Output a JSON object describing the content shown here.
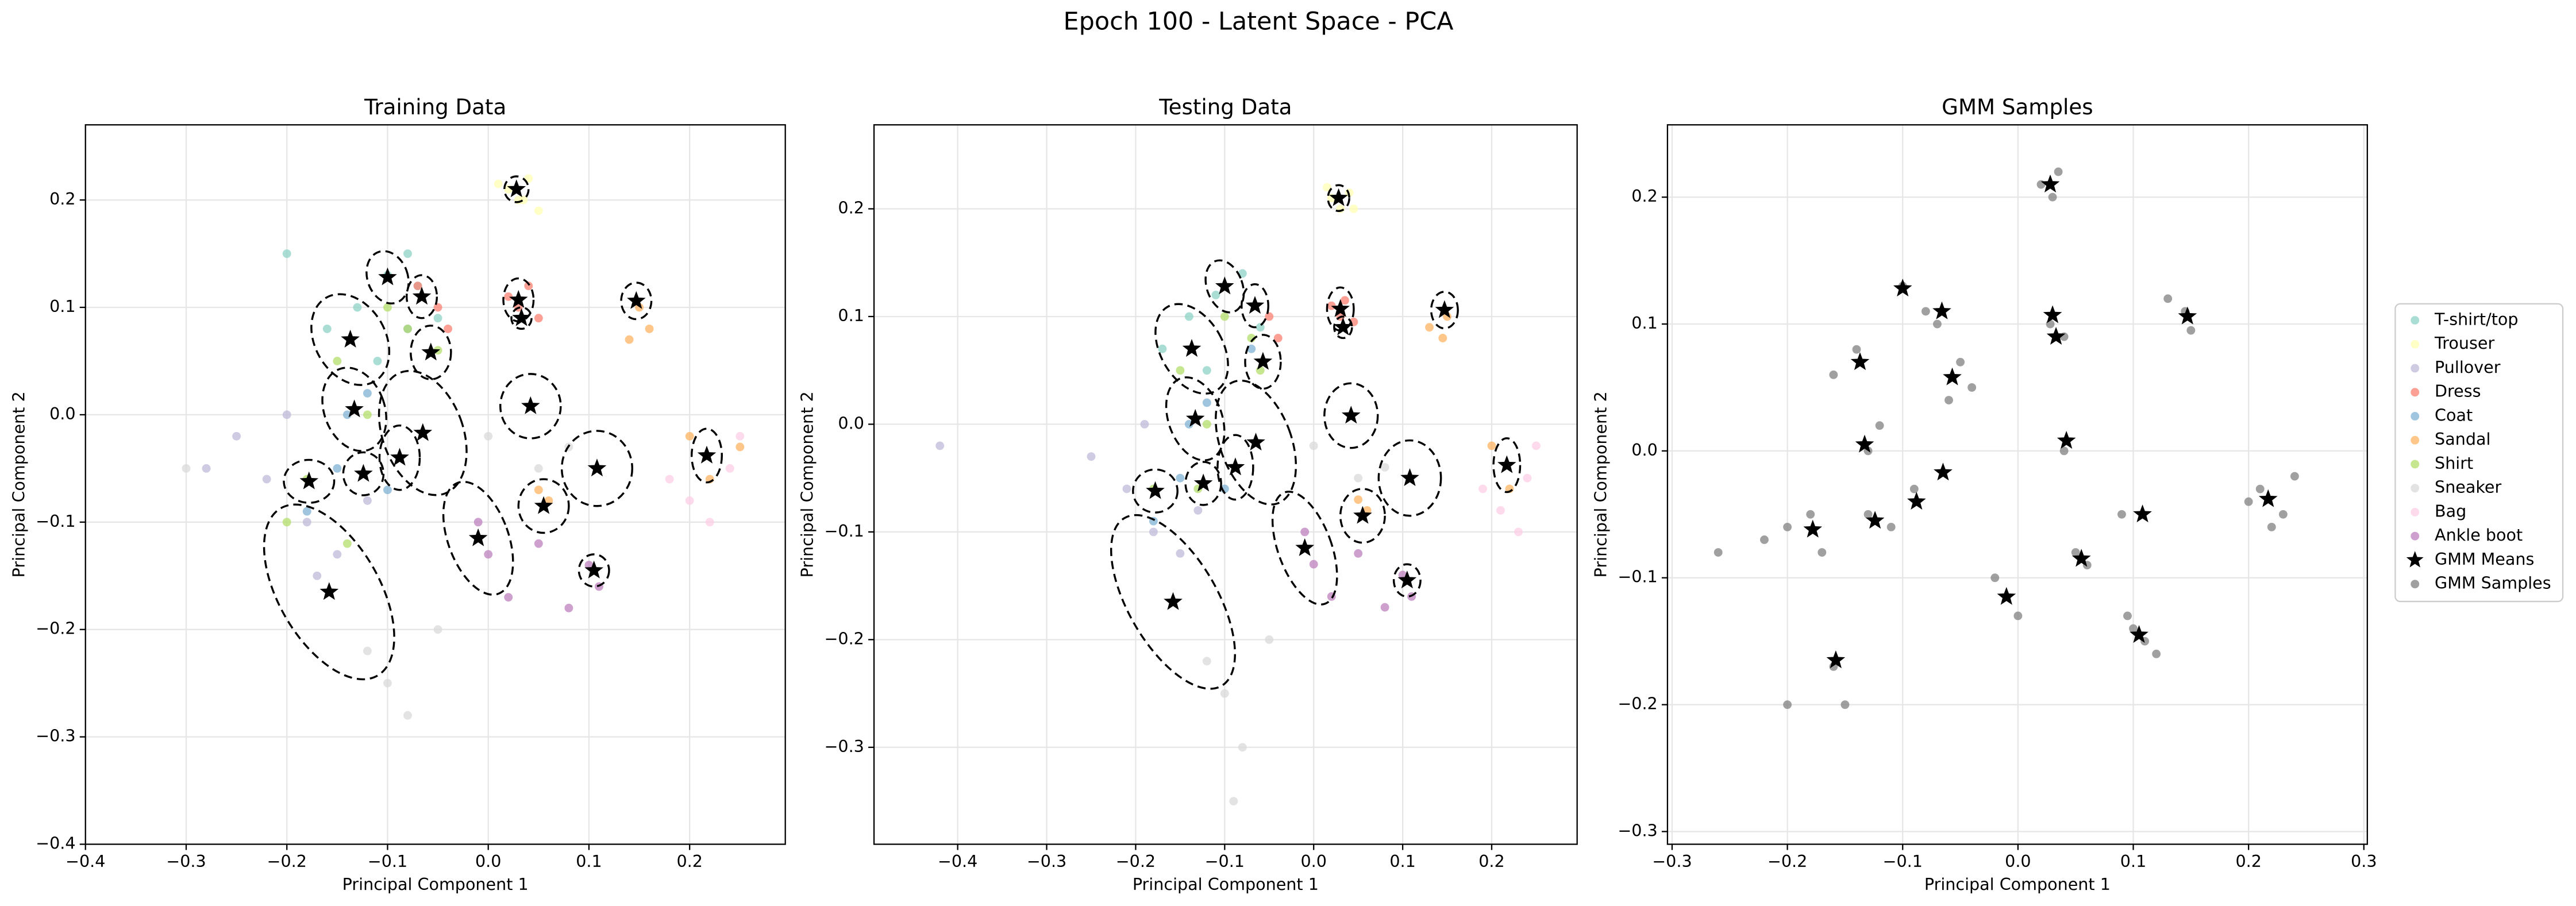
{
  "title": "Epoch 100 - Latent Space - PCA",
  "chart_data": [
    {
      "type": "scatter",
      "title": "Training Data",
      "x_label": "Principal Component 1",
      "y_label": "Principal Component 2",
      "grid": true,
      "xlim": [
        -0.4,
        0.295
      ],
      "ylim": [
        -0.4,
        0.27
      ],
      "xticks": [
        {
          "value": -0.4,
          "label": "−0.4"
        },
        {
          "value": -0.3,
          "label": "−0.3"
        },
        {
          "value": -0.2,
          "label": "−0.2"
        },
        {
          "value": -0.1,
          "label": "−0.1"
        },
        {
          "value": 0,
          "label": "0.0"
        },
        0.1,
        0.2
      ],
      "yticks": [
        {
          "value": -0.4,
          "label": "−0.4"
        },
        {
          "value": -0.3,
          "label": "−0.3"
        },
        {
          "value": -0.2,
          "label": "−0.2"
        },
        {
          "value": -0.1,
          "label": "−0.1"
        },
        {
          "value": 0,
          "label": "0.0"
        },
        0.1,
        0.2
      ],
      "series": [
        {
          "name": "T-shirt/top",
          "color": "#8dd3c7",
          "x": [
            -0.1,
            -0.13,
            -0.08,
            -0.16,
            -0.05,
            -0.2,
            -0.11,
            -0.07
          ],
          "y": [
            0.13,
            0.1,
            0.15,
            0.08,
            0.09,
            0.15,
            0.05,
            0.12
          ]
        },
        {
          "name": "Trouser",
          "color": "#ffffb3",
          "x": [
            0.02,
            0.03,
            0.04,
            0.01,
            0.05,
            0.035
          ],
          "y": [
            0.21,
            0.2,
            0.22,
            0.215,
            0.19,
            0.2
          ]
        },
        {
          "name": "Pullover",
          "color": "#bebada",
          "x": [
            -0.22,
            -0.18,
            -0.15,
            -0.25,
            -0.2,
            -0.12,
            -0.28,
            -0.17
          ],
          "y": [
            -0.06,
            -0.1,
            -0.13,
            -0.02,
            0.0,
            -0.08,
            -0.05,
            -0.15
          ]
        },
        {
          "name": "Dress",
          "color": "#fb8072",
          "x": [
            0.03,
            0.02,
            0.05,
            -0.05,
            -0.04,
            0.04,
            -0.07
          ],
          "y": [
            0.1,
            0.11,
            0.09,
            0.1,
            0.08,
            0.12,
            0.12
          ]
        },
        {
          "name": "Coat",
          "color": "#80b1d3",
          "x": [
            -0.15,
            -0.12,
            -0.1,
            -0.18,
            -0.14,
            -0.08
          ],
          "y": [
            -0.05,
            0.02,
            -0.07,
            -0.09,
            0.0,
            0.08
          ]
        },
        {
          "name": "Sandal",
          "color": "#fdb462",
          "x": [
            0.15,
            0.16,
            0.2,
            0.22,
            0.06,
            0.05,
            0.14,
            0.25
          ],
          "y": [
            0.1,
            0.08,
            -0.02,
            -0.06,
            -0.08,
            -0.07,
            0.07,
            -0.03
          ]
        },
        {
          "name": "Shirt",
          "color": "#b3de69",
          "x": [
            -0.1,
            -0.18,
            -0.12,
            -0.15,
            -0.08,
            -0.2,
            -0.14,
            -0.05
          ],
          "y": [
            0.1,
            -0.06,
            0.0,
            0.05,
            0.08,
            -0.1,
            -0.12,
            0.06
          ]
        },
        {
          "name": "Sneaker",
          "color": "#d9d9d9",
          "x": [
            -0.05,
            -0.1,
            0.05,
            0.0,
            -0.08,
            -0.12,
            0.08,
            -0.3
          ],
          "y": [
            -0.2,
            -0.25,
            -0.05,
            -0.02,
            -0.28,
            -0.22,
            -0.03,
            -0.05
          ]
        },
        {
          "name": "Bag",
          "color": "#fccde5",
          "x": [
            0.24,
            0.2,
            0.22,
            0.25,
            0.18
          ],
          "y": [
            -0.05,
            -0.08,
            -0.1,
            -0.02,
            -0.06
          ]
        },
        {
          "name": "Ankle boot",
          "color": "#bc80bd",
          "x": [
            0.0,
            0.1,
            -0.01,
            0.11,
            0.05,
            0.08,
            0.02
          ],
          "y": [
            -0.13,
            -0.14,
            -0.1,
            -0.16,
            -0.12,
            -0.18,
            -0.17
          ]
        },
        {
          "name": "GMM Means",
          "color": "#000000",
          "marker": "star",
          "x": [
            0.028,
            0.03,
            0.033,
            0.147,
            -0.1,
            -0.066,
            -0.137,
            -0.057,
            -0.133,
            0.042,
            -0.065,
            -0.088,
            -0.178,
            -0.124,
            0.108,
            0.217,
            0.055,
            -0.01,
            0.105,
            -0.158
          ],
          "y": [
            0.21,
            0.107,
            0.09,
            0.106,
            0.128,
            0.11,
            0.07,
            0.058,
            0.005,
            0.008,
            -0.017,
            -0.04,
            -0.062,
            -0.055,
            -0.05,
            -0.038,
            -0.085,
            -0.115,
            -0.145,
            -0.165
          ],
          "ellipses": [
            [
              0.012,
              0.012,
              0
            ],
            [
              0.015,
              0.02,
              0
            ],
            [
              0.01,
              0.01,
              0
            ],
            [
              0.015,
              0.017,
              0
            ],
            [
              0.02,
              0.025,
              -20
            ],
            [
              0.015,
              0.02,
              0
            ],
            [
              0.035,
              0.045,
              -30
            ],
            [
              0.02,
              0.025,
              0
            ],
            [
              0.03,
              0.04,
              -20
            ],
            [
              0.03,
              0.03,
              0
            ],
            [
              0.04,
              0.06,
              -20
            ],
            [
              0.02,
              0.03,
              0
            ],
            [
              0.025,
              0.02,
              0
            ],
            [
              0.02,
              0.02,
              0
            ],
            [
              0.035,
              0.035,
              0
            ],
            [
              0.015,
              0.025,
              0
            ],
            [
              0.025,
              0.025,
              0
            ],
            [
              0.03,
              0.055,
              -20
            ],
            [
              0.015,
              0.015,
              0
            ],
            [
              0.05,
              0.09,
              -30
            ]
          ]
        }
      ]
    },
    {
      "type": "scatter",
      "title": "Testing Data",
      "x_label": "Principal Component 1",
      "y_label": "Principal Component 2",
      "grid": true,
      "xlim": [
        -0.494,
        0.296
      ],
      "ylim": [
        -0.39,
        0.278
      ],
      "xticks": [
        {
          "value": -0.4,
          "label": "−0.4"
        },
        {
          "value": -0.3,
          "label": "−0.3"
        },
        {
          "value": -0.2,
          "label": "−0.2"
        },
        {
          "value": -0.1,
          "label": "−0.1"
        },
        {
          "value": 0,
          "label": "0.0"
        },
        0.1,
        0.2
      ],
      "yticks": [
        {
          "value": -0.3,
          "label": "−0.3"
        },
        {
          "value": -0.2,
          "label": "−0.2"
        },
        {
          "value": -0.1,
          "label": "−0.1"
        },
        {
          "value": 0,
          "label": "0.0"
        },
        0.1,
        0.2
      ],
      "series": [
        {
          "name": "T-shirt/top",
          "color": "#8dd3c7",
          "x": [
            -0.11,
            -0.14,
            -0.08,
            -0.17,
            -0.06,
            -0.12
          ],
          "y": [
            0.12,
            0.1,
            0.14,
            0.07,
            0.09,
            0.05
          ]
        },
        {
          "name": "Trouser",
          "color": "#ffffb3",
          "x": [
            0.02,
            0.03,
            0.04,
            0.015,
            0.045
          ],
          "y": [
            0.21,
            0.2,
            0.215,
            0.22,
            0.2
          ]
        },
        {
          "name": "Pullover",
          "color": "#bebada",
          "x": [
            -0.21,
            -0.18,
            -0.15,
            -0.25,
            -0.19,
            -0.13,
            -0.42
          ],
          "y": [
            -0.06,
            -0.1,
            -0.12,
            -0.03,
            0.0,
            -0.08,
            -0.02
          ]
        },
        {
          "name": "Dress",
          "color": "#fb8072",
          "x": [
            0.03,
            0.02,
            0.045,
            -0.05,
            -0.04,
            0.035
          ],
          "y": [
            0.1,
            0.11,
            0.095,
            0.1,
            0.08,
            0.115
          ]
        },
        {
          "name": "Coat",
          "color": "#80b1d3",
          "x": [
            -0.15,
            -0.12,
            -0.1,
            -0.18,
            -0.14,
            -0.07
          ],
          "y": [
            -0.05,
            0.02,
            -0.06,
            -0.09,
            0.0,
            0.07
          ]
        },
        {
          "name": "Sandal",
          "color": "#fdb462",
          "x": [
            0.15,
            0.145,
            0.2,
            0.22,
            0.06,
            0.05,
            0.13
          ],
          "y": [
            0.1,
            0.08,
            -0.02,
            -0.06,
            -0.08,
            -0.07,
            0.09
          ]
        },
        {
          "name": "Shirt",
          "color": "#b3de69",
          "x": [
            -0.1,
            -0.18,
            -0.12,
            -0.15,
            -0.07,
            -0.13,
            -0.06
          ],
          "y": [
            0.1,
            -0.06,
            0.0,
            0.05,
            0.08,
            -0.06,
            0.05
          ]
        },
        {
          "name": "Sneaker",
          "color": "#d9d9d9",
          "x": [
            -0.05,
            -0.1,
            0.05,
            0.0,
            -0.08,
            -0.12,
            0.08,
            -0.09
          ],
          "y": [
            -0.2,
            -0.25,
            -0.05,
            -0.02,
            -0.3,
            -0.22,
            -0.04,
            -0.35
          ]
        },
        {
          "name": "Bag",
          "color": "#fccde5",
          "x": [
            0.24,
            0.21,
            0.23,
            0.25,
            0.19
          ],
          "y": [
            -0.05,
            -0.08,
            -0.1,
            -0.02,
            -0.06
          ]
        },
        {
          "name": "Ankle boot",
          "color": "#bc80bd",
          "x": [
            0.0,
            0.1,
            -0.01,
            0.11,
            0.05,
            0.08,
            0.02
          ],
          "y": [
            -0.13,
            -0.14,
            -0.1,
            -0.16,
            -0.12,
            -0.17,
            -0.16
          ]
        },
        {
          "name": "GMM Means",
          "color": "#000000",
          "marker": "star",
          "x": [
            0.028,
            0.03,
            0.033,
            0.147,
            -0.1,
            -0.066,
            -0.137,
            -0.057,
            -0.133,
            0.042,
            -0.065,
            -0.088,
            -0.178,
            -0.124,
            0.108,
            0.217,
            0.055,
            -0.01,
            0.105,
            -0.158
          ],
          "y": [
            0.21,
            0.107,
            0.09,
            0.106,
            0.128,
            0.11,
            0.07,
            0.058,
            0.005,
            0.008,
            -0.017,
            -0.04,
            -0.062,
            -0.055,
            -0.05,
            -0.038,
            -0.085,
            -0.115,
            -0.145,
            -0.165
          ],
          "ellipses": [
            [
              0.012,
              0.012,
              0
            ],
            [
              0.015,
              0.02,
              0
            ],
            [
              0.01,
              0.01,
              0
            ],
            [
              0.015,
              0.017,
              0
            ],
            [
              0.02,
              0.025,
              -20
            ],
            [
              0.015,
              0.02,
              0
            ],
            [
              0.035,
              0.045,
              -30
            ],
            [
              0.02,
              0.025,
              0
            ],
            [
              0.03,
              0.04,
              -20
            ],
            [
              0.03,
              0.03,
              0
            ],
            [
              0.04,
              0.06,
              -20
            ],
            [
              0.02,
              0.03,
              0
            ],
            [
              0.025,
              0.02,
              0
            ],
            [
              0.02,
              0.02,
              0
            ],
            [
              0.035,
              0.035,
              0
            ],
            [
              0.015,
              0.025,
              0
            ],
            [
              0.025,
              0.025,
              0
            ],
            [
              0.03,
              0.055,
              -20
            ],
            [
              0.015,
              0.015,
              0
            ],
            [
              0.05,
              0.09,
              -30
            ]
          ]
        }
      ]
    },
    {
      "type": "scatter",
      "title": "GMM Samples",
      "x_label": "Principal Component 1",
      "y_label": "Principal Component 2",
      "grid": true,
      "xlim": [
        -0.304,
        0.303
      ],
      "ylim": [
        -0.31,
        0.257
      ],
      "xticks": [
        {
          "value": -0.3,
          "label": "−0.3"
        },
        {
          "value": -0.2,
          "label": "−0.2"
        },
        {
          "value": -0.1,
          "label": "−0.1"
        },
        {
          "value": 0,
          "label": "0.0"
        },
        0.1,
        0.2,
        0.3
      ],
      "yticks": [
        {
          "value": -0.3,
          "label": "−0.3"
        },
        {
          "value": -0.2,
          "label": "−0.2"
        },
        {
          "value": -0.1,
          "label": "−0.1"
        },
        {
          "value": 0,
          "label": "0.0"
        },
        0.1,
        0.2
      ],
      "series": [
        {
          "name": "GMM Samples",
          "color": "#808080",
          "x": [
            0.02,
            0.035,
            0.03,
            0.028,
            0.04,
            0.145,
            0.15,
            0.13,
            -0.1,
            -0.08,
            -0.07,
            -0.05,
            -0.04,
            -0.06,
            -0.14,
            -0.16,
            -0.13,
            -0.12,
            -0.2,
            -0.18,
            -0.17,
            -0.22,
            -0.13,
            -0.11,
            0.21,
            0.23,
            0.2,
            0.24,
            0.22,
            0.1,
            0.11,
            0.095,
            0.12,
            0.05,
            0.06,
            -0.02,
            0.0,
            -0.16,
            -0.15,
            -0.2,
            -0.26,
            0.09,
            0.04,
            -0.09
          ],
          "y": [
            0.21,
            0.22,
            0.2,
            0.1,
            0.09,
            0.11,
            0.095,
            0.12,
            0.13,
            0.11,
            0.1,
            0.07,
            0.05,
            0.04,
            0.08,
            0.06,
            0.0,
            0.02,
            -0.06,
            -0.05,
            -0.08,
            -0.07,
            -0.05,
            -0.06,
            -0.03,
            -0.05,
            -0.04,
            -0.02,
            -0.06,
            -0.14,
            -0.15,
            -0.13,
            -0.16,
            -0.08,
            -0.09,
            -0.1,
            -0.13,
            -0.17,
            -0.2,
            -0.2,
            -0.08,
            -0.05,
            0.0,
            -0.03
          ]
        },
        {
          "name": "GMM Means",
          "color": "#000000",
          "marker": "star",
          "x": [
            0.028,
            0.03,
            0.033,
            0.147,
            -0.1,
            -0.066,
            -0.137,
            -0.057,
            -0.133,
            0.042,
            -0.065,
            -0.088,
            -0.178,
            -0.124,
            0.108,
            0.217,
            0.055,
            -0.01,
            0.105,
            -0.158
          ],
          "y": [
            0.21,
            0.107,
            0.09,
            0.106,
            0.128,
            0.11,
            0.07,
            0.058,
            0.005,
            0.008,
            -0.017,
            -0.04,
            -0.062,
            -0.055,
            -0.05,
            -0.038,
            -0.085,
            -0.115,
            -0.145,
            -0.165
          ]
        }
      ]
    }
  ]
}
